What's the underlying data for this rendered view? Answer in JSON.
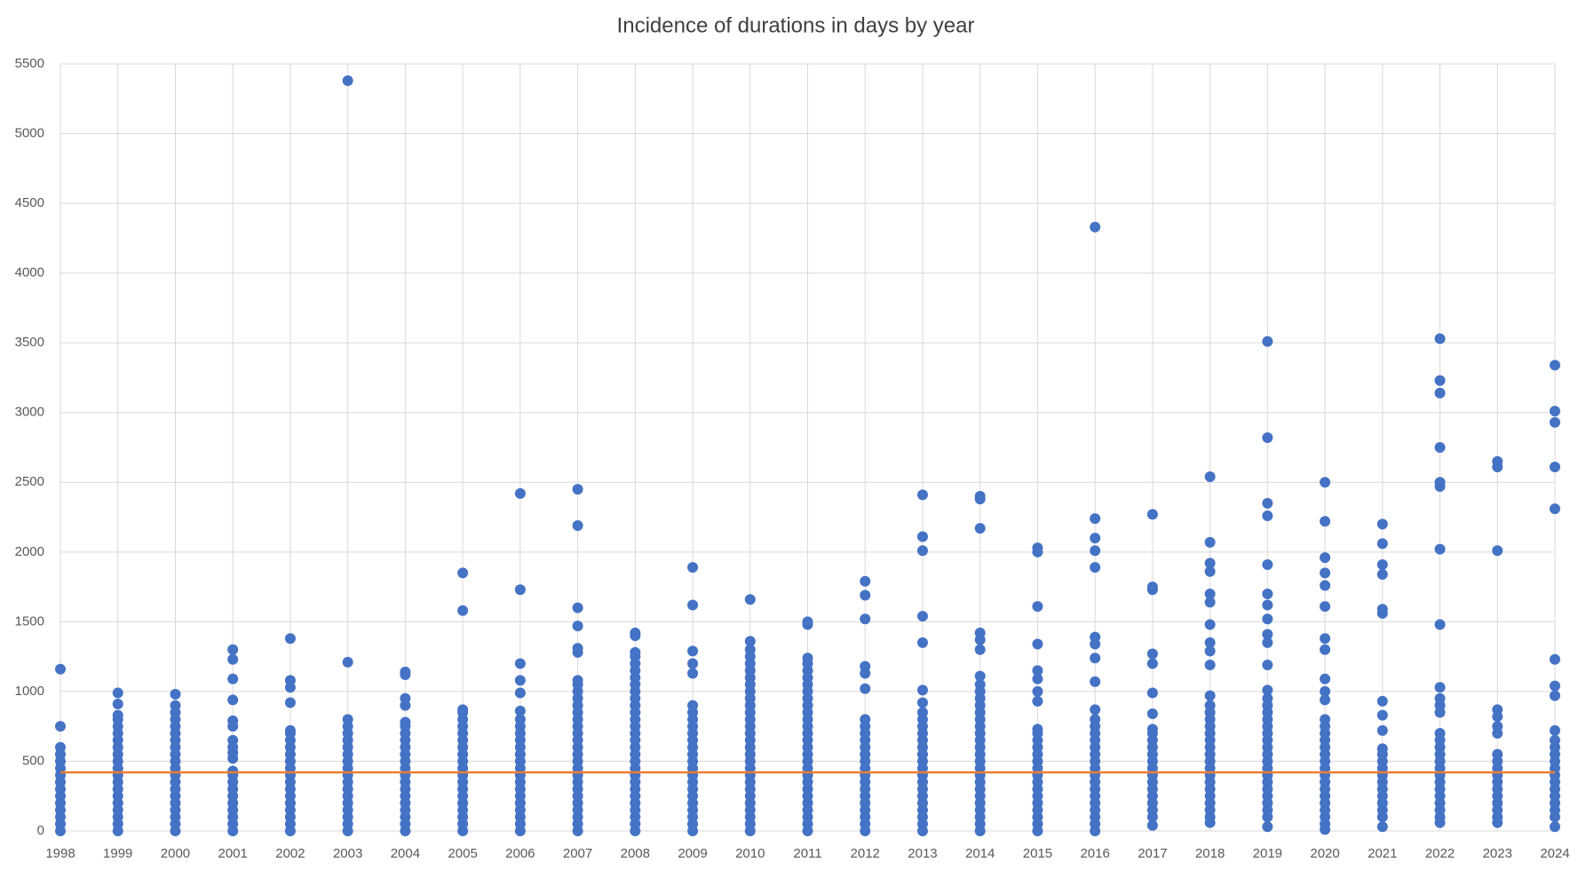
{
  "chart_data": {
    "type": "scatter",
    "title": "Incidence of durations in days by year",
    "color": "#4472c4",
    "grid": true,
    "reference_line": {
      "value": 420,
      "color": "#ed7d31"
    },
    "xlim": [
      1998,
      2024
    ],
    "xticks": [
      1998,
      1999,
      2000,
      2001,
      2002,
      2003,
      2004,
      2005,
      2006,
      2007,
      2008,
      2009,
      2010,
      2011,
      2012,
      2013,
      2014,
      2015,
      2016,
      2017,
      2018,
      2019,
      2020,
      2021,
      2022,
      2023,
      2024
    ],
    "ylim": [
      0,
      5500
    ],
    "yticks": [
      0,
      500,
      1000,
      1500,
      2000,
      2500,
      3000,
      3500,
      4000,
      4500,
      5000,
      5500
    ],
    "points": [
      {
        "x": 1998,
        "values": [
          0,
          50,
          100,
          150,
          200,
          250,
          300,
          350,
          400,
          450,
          500,
          550,
          600,
          750,
          1160
        ]
      },
      {
        "x": 1999,
        "values": [
          0,
          50,
          100,
          150,
          200,
          250,
          300,
          350,
          400,
          450,
          500,
          550,
          600,
          650,
          700,
          750,
          800,
          830,
          910,
          990
        ]
      },
      {
        "x": 2000,
        "values": [
          0,
          50,
          100,
          150,
          200,
          250,
          300,
          350,
          400,
          450,
          500,
          550,
          600,
          650,
          700,
          750,
          800,
          850,
          900,
          980
        ]
      },
      {
        "x": 2001,
        "values": [
          0,
          50,
          100,
          150,
          200,
          250,
          300,
          350,
          400,
          430,
          520,
          560,
          600,
          650,
          750,
          790,
          940,
          1090,
          1230,
          1300
        ]
      },
      {
        "x": 2002,
        "values": [
          0,
          50,
          100,
          150,
          200,
          250,
          300,
          350,
          400,
          450,
          500,
          550,
          600,
          650,
          700,
          720,
          920,
          1030,
          1080,
          1380
        ]
      },
      {
        "x": 2003,
        "values": [
          0,
          50,
          100,
          150,
          200,
          250,
          300,
          350,
          400,
          450,
          500,
          550,
          600,
          650,
          700,
          750,
          800,
          1210,
          5380
        ]
      },
      {
        "x": 2004,
        "values": [
          0,
          50,
          100,
          150,
          200,
          250,
          300,
          350,
          400,
          450,
          500,
          550,
          600,
          650,
          700,
          750,
          780,
          900,
          950,
          1120,
          1140
        ]
      },
      {
        "x": 2005,
        "values": [
          0,
          50,
          100,
          150,
          200,
          250,
          300,
          350,
          400,
          450,
          500,
          550,
          600,
          650,
          700,
          750,
          800,
          850,
          870,
          1580,
          1850
        ]
      },
      {
        "x": 2006,
        "values": [
          0,
          50,
          100,
          150,
          200,
          250,
          300,
          350,
          400,
          450,
          500,
          550,
          600,
          650,
          700,
          750,
          800,
          860,
          990,
          1080,
          1200,
          1730,
          2420
        ]
      },
      {
        "x": 2007,
        "values": [
          0,
          50,
          100,
          150,
          200,
          250,
          300,
          350,
          400,
          450,
          500,
          550,
          600,
          650,
          700,
          750,
          800,
          850,
          900,
          950,
          1000,
          1050,
          1080,
          1280,
          1310,
          1470,
          1600,
          2190,
          2450
        ]
      },
      {
        "x": 2008,
        "values": [
          0,
          50,
          100,
          150,
          200,
          250,
          300,
          350,
          400,
          450,
          500,
          550,
          600,
          650,
          700,
          750,
          800,
          850,
          900,
          950,
          1000,
          1050,
          1100,
          1150,
          1200,
          1250,
          1280,
          1400,
          1420
        ]
      },
      {
        "x": 2009,
        "values": [
          0,
          50,
          100,
          150,
          200,
          250,
          300,
          350,
          400,
          450,
          500,
          550,
          600,
          650,
          700,
          750,
          800,
          850,
          900,
          1130,
          1200,
          1290,
          1620,
          1890
        ]
      },
      {
        "x": 2010,
        "values": [
          0,
          50,
          100,
          150,
          200,
          250,
          300,
          350,
          400,
          450,
          500,
          550,
          600,
          650,
          700,
          750,
          800,
          850,
          900,
          950,
          1000,
          1050,
          1100,
          1150,
          1200,
          1250,
          1300,
          1360,
          1660
        ]
      },
      {
        "x": 2011,
        "values": [
          0,
          50,
          100,
          150,
          200,
          250,
          300,
          350,
          400,
          450,
          500,
          550,
          600,
          650,
          700,
          750,
          800,
          850,
          900,
          950,
          1000,
          1050,
          1100,
          1150,
          1200,
          1240,
          1480,
          1500
        ]
      },
      {
        "x": 2012,
        "values": [
          0,
          50,
          100,
          150,
          200,
          250,
          300,
          350,
          400,
          450,
          500,
          550,
          600,
          650,
          700,
          750,
          800,
          1020,
          1130,
          1180,
          1520,
          1690,
          1790
        ]
      },
      {
        "x": 2013,
        "values": [
          0,
          50,
          100,
          150,
          200,
          250,
          300,
          350,
          400,
          450,
          500,
          550,
          600,
          650,
          700,
          750,
          800,
          850,
          920,
          1010,
          1350,
          1540,
          2010,
          2110,
          2410
        ]
      },
      {
        "x": 2014,
        "values": [
          0,
          50,
          100,
          150,
          200,
          250,
          300,
          350,
          400,
          450,
          500,
          550,
          600,
          650,
          700,
          750,
          800,
          850,
          900,
          950,
          1000,
          1050,
          1110,
          1300,
          1370,
          1420,
          2170,
          2380,
          2400
        ]
      },
      {
        "x": 2015,
        "values": [
          0,
          50,
          100,
          150,
          200,
          250,
          300,
          350,
          400,
          450,
          500,
          550,
          600,
          650,
          700,
          730,
          930,
          1000,
          1090,
          1150,
          1340,
          1610,
          2000,
          2030
        ]
      },
      {
        "x": 2016,
        "values": [
          0,
          50,
          100,
          150,
          200,
          250,
          300,
          350,
          400,
          450,
          500,
          550,
          600,
          650,
          700,
          750,
          800,
          870,
          1070,
          1240,
          1340,
          1390,
          1890,
          2010,
          2100,
          2240,
          4330
        ]
      },
      {
        "x": 2017,
        "values": [
          40,
          100,
          150,
          200,
          250,
          300,
          350,
          400,
          450,
          500,
          550,
          600,
          650,
          700,
          730,
          840,
          990,
          1200,
          1270,
          1730,
          1750,
          2270
        ]
      },
      {
        "x": 2018,
        "values": [
          60,
          100,
          150,
          200,
          250,
          300,
          350,
          400,
          450,
          500,
          550,
          600,
          650,
          700,
          750,
          800,
          850,
          900,
          970,
          1190,
          1290,
          1350,
          1480,
          1640,
          1700,
          1860,
          1920,
          2070,
          2540
        ]
      },
      {
        "x": 2019,
        "values": [
          30,
          100,
          150,
          200,
          250,
          300,
          350,
          400,
          450,
          500,
          550,
          600,
          650,
          700,
          750,
          800,
          850,
          900,
          950,
          1010,
          1190,
          1350,
          1410,
          1520,
          1620,
          1700,
          1910,
          2260,
          2350,
          2820,
          3510
        ]
      },
      {
        "x": 2020,
        "values": [
          10,
          50,
          100,
          150,
          200,
          250,
          300,
          350,
          400,
          450,
          500,
          550,
          600,
          650,
          700,
          750,
          800,
          940,
          1000,
          1090,
          1300,
          1380,
          1610,
          1760,
          1850,
          1960,
          2220,
          2500
        ]
      },
      {
        "x": 2021,
        "values": [
          30,
          100,
          150,
          200,
          250,
          300,
          350,
          400,
          450,
          500,
          550,
          590,
          720,
          830,
          930,
          1560,
          1590,
          1840,
          1910,
          2060,
          2200
        ]
      },
      {
        "x": 2022,
        "values": [
          60,
          100,
          150,
          200,
          250,
          300,
          350,
          400,
          450,
          500,
          550,
          600,
          650,
          700,
          850,
          900,
          950,
          1030,
          1480,
          2020,
          2470,
          2500,
          2750,
          3140,
          3230,
          3530
        ]
      },
      {
        "x": 2023,
        "values": [
          60,
          100,
          150,
          200,
          250,
          300,
          350,
          400,
          450,
          500,
          550,
          700,
          750,
          820,
          870,
          2010,
          2610,
          2650
        ]
      },
      {
        "x": 2024,
        "values": [
          30,
          100,
          150,
          200,
          250,
          300,
          350,
          400,
          450,
          500,
          550,
          600,
          650,
          720,
          970,
          1040,
          1230,
          2310,
          2610,
          2930,
          3010,
          3340
        ]
      }
    ]
  }
}
